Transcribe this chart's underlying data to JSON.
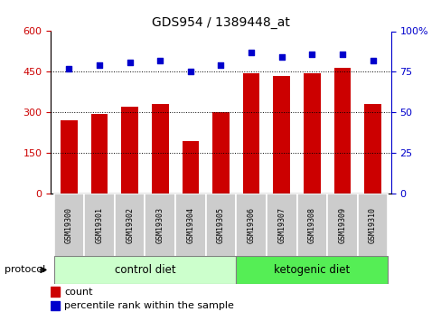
{
  "title": "GDS954 / 1389448_at",
  "samples": [
    "GSM19300",
    "GSM19301",
    "GSM19302",
    "GSM19303",
    "GSM19304",
    "GSM19305",
    "GSM19306",
    "GSM19307",
    "GSM19308",
    "GSM19309",
    "GSM19310"
  ],
  "counts": [
    270,
    295,
    320,
    330,
    195,
    300,
    445,
    435,
    445,
    465,
    330
  ],
  "percentile_ranks": [
    77,
    79,
    81,
    82,
    75,
    79,
    87,
    84,
    86,
    86,
    82
  ],
  "n_control": 6,
  "n_ketogenic": 5,
  "control_label": "control diet",
  "ketogenic_label": "ketogenic diet",
  "protocol_label": "protocol",
  "bar_color": "#cc0000",
  "dot_color": "#0000cc",
  "left_yticks": [
    0,
    150,
    300,
    450,
    600
  ],
  "right_yticks": [
    0,
    25,
    50,
    75,
    100
  ],
  "ylim_left": [
    0,
    600
  ],
  "ylim_right": [
    0,
    100
  ],
  "control_bg": "#ccffcc",
  "ketogenic_bg": "#55ee55",
  "tick_label_bg": "#cccccc",
  "legend_count_label": "count",
  "legend_percentile_label": "percentile rank within the sample",
  "bar_width": 0.55
}
